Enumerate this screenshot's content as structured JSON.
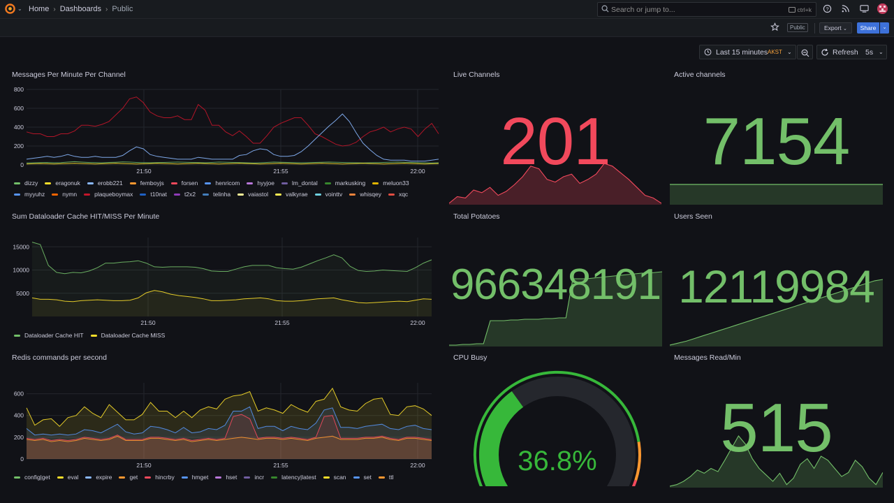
{
  "breadcrumb": {
    "home": "Home",
    "dashboards": "Dashboards",
    "current": "Public"
  },
  "search": {
    "placeholder": "Search or jump to...",
    "shortcut": "ctrl+k"
  },
  "toolbar": {
    "public_tag": "Public",
    "export_label": "Export",
    "share_label": "Share"
  },
  "timepicker": {
    "range": "Last 15 minutes",
    "timezone": "AKST",
    "refresh_label": "Refresh",
    "refresh_interval": "5s"
  },
  "colors": {
    "green": "#73bf69",
    "red": "#f2495c",
    "yellow": "#fade2a",
    "blue": "#8ab8ff",
    "orange": "#ff9830",
    "darkred": "#c4162a"
  },
  "panels": {
    "messages_per_minute": {
      "title": "Messages Per Minute Per Channel",
      "legend": [
        {
          "name": "dizzy",
          "color": "#73bf69"
        },
        {
          "name": "eragonuk",
          "color": "#fade2a"
        },
        {
          "name": "erobb221",
          "color": "#8ab8ff"
        },
        {
          "name": "femboyjs",
          "color": "#ff9830"
        },
        {
          "name": "forsen",
          "color": "#f2495c"
        },
        {
          "name": "henricom",
          "color": "#5794f2"
        },
        {
          "name": "hyyjoe",
          "color": "#b877d9"
        },
        {
          "name": "lm_dontal",
          "color": "#705da0"
        },
        {
          "name": "markusking",
          "color": "#37872d"
        },
        {
          "name": "meluon33",
          "color": "#e0b400"
        },
        {
          "name": "myyuhz",
          "color": "#5794f2"
        },
        {
          "name": "nymn",
          "color": "#fa6400"
        },
        {
          "name": "plaqueboymax",
          "color": "#c4162a"
        },
        {
          "name": "t10nat",
          "color": "#1f60c4"
        },
        {
          "name": "t2x2",
          "color": "#8f3bb8"
        },
        {
          "name": "telinha",
          "color": "#447ebc"
        },
        {
          "name": "vaiastol",
          "color": "#fff899"
        },
        {
          "name": "valkyrae",
          "color": "#ffee52"
        },
        {
          "name": "vointtv",
          "color": "#6ed0e0"
        },
        {
          "name": "whisqey",
          "color": "#ef843c"
        },
        {
          "name": "xqc",
          "color": "#e24d42"
        }
      ]
    },
    "live_channels": {
      "title": "Live Channels",
      "value": "201"
    },
    "active_channels": {
      "title": "Active channels",
      "value": "7154"
    },
    "cache": {
      "title": "Sum Dataloader Cache HIT/MISS Per Minute",
      "legend": [
        {
          "name": "Dataloader Cache HIT",
          "color": "#73bf69"
        },
        {
          "name": "Dataloader Cache MISS",
          "color": "#fade2a"
        }
      ]
    },
    "total_potatoes": {
      "title": "Total Potatoes",
      "value": "966348191"
    },
    "users_seen": {
      "title": "Users Seen",
      "value": "12119984"
    },
    "redis": {
      "title": "Redis commands per second",
      "legend": [
        {
          "name": "config|get",
          "color": "#73bf69"
        },
        {
          "name": "eval",
          "color": "#fade2a"
        },
        {
          "name": "expire",
          "color": "#8ab8ff"
        },
        {
          "name": "get",
          "color": "#ff9830"
        },
        {
          "name": "hincrby",
          "color": "#f2495c"
        },
        {
          "name": "hmget",
          "color": "#5794f2"
        },
        {
          "name": "hset",
          "color": "#b877d9"
        },
        {
          "name": "incr",
          "color": "#705da0"
        },
        {
          "name": "latency|latest",
          "color": "#37872d"
        },
        {
          "name": "scan",
          "color": "#fade2a"
        },
        {
          "name": "set",
          "color": "#5794f2"
        },
        {
          "name": "ttl",
          "color": "#ff9830"
        }
      ]
    },
    "cpu_busy": {
      "title": "CPU Busy",
      "value": "36.8%",
      "percent": 36.8
    },
    "messages_read": {
      "title": "Messages Read/Min",
      "value": "515"
    }
  },
  "chart_data": [
    {
      "type": "line",
      "title": "Messages Per Minute Per Channel",
      "x_ticks": [
        "21:50",
        "21:55",
        "22:00"
      ],
      "y_ticks": [
        0,
        200,
        400,
        600,
        800
      ],
      "ylim": [
        0,
        800
      ],
      "x": [
        0,
        1,
        2,
        3,
        4,
        5,
        6,
        7,
        8,
        9,
        10,
        11,
        12,
        13,
        14,
        15,
        16,
        17,
        18,
        19,
        20,
        21,
        22,
        23,
        24,
        25,
        26,
        27,
        28,
        29,
        30,
        31,
        32,
        33,
        34,
        35,
        36,
        37,
        38,
        39,
        40,
        41,
        42,
        43,
        44,
        45,
        46,
        47,
        48,
        49,
        50,
        51,
        52,
        53,
        54,
        55,
        56,
        57,
        58,
        59,
        60
      ],
      "series": [
        {
          "name": "plaqueboymax",
          "color": "#c4162a",
          "values": [
            350,
            330,
            330,
            300,
            300,
            330,
            330,
            360,
            420,
            420,
            410,
            430,
            460,
            530,
            600,
            700,
            720,
            660,
            560,
            520,
            500,
            500,
            520,
            480,
            480,
            640,
            580,
            420,
            420,
            350,
            310,
            360,
            300,
            230,
            230,
            310,
            400,
            440,
            470,
            500,
            500,
            420,
            330,
            300,
            260,
            220,
            200,
            210,
            240,
            300,
            350,
            370,
            400,
            350,
            380,
            400,
            380,
            300,
            380,
            440,
            330
          ]
        },
        {
          "name": "myyuhz",
          "color": "#8ab8ff",
          "values": [
            60,
            70,
            80,
            90,
            80,
            90,
            110,
            90,
            80,
            80,
            90,
            80,
            80,
            80,
            100,
            150,
            190,
            170,
            110,
            90,
            80,
            70,
            60,
            60,
            60,
            80,
            70,
            60,
            60,
            60,
            60,
            100,
            110,
            150,
            170,
            160,
            110,
            90,
            90,
            100,
            140,
            200,
            270,
            340,
            410,
            470,
            540,
            460,
            340,
            230,
            160,
            100,
            60,
            50,
            50,
            50,
            40,
            40,
            40,
            50,
            60
          ]
        },
        {
          "name": "dizzy",
          "color": "#73bf69",
          "values": [
            20,
            22,
            24,
            26,
            22,
            24,
            30,
            34,
            30,
            26,
            24,
            22,
            26,
            28,
            32,
            30,
            26,
            24,
            22,
            24,
            26,
            28,
            30,
            28,
            26,
            24,
            22,
            26,
            30,
            28,
            26,
            24,
            22,
            20,
            22,
            26,
            30,
            28,
            26,
            24,
            22,
            24,
            26,
            28,
            30,
            28,
            26,
            24,
            22,
            20,
            22,
            24,
            26,
            28,
            30,
            28,
            26,
            24,
            22,
            20,
            22
          ]
        },
        {
          "name": "eragonuk",
          "color": "#fade2a",
          "values": [
            10,
            12,
            14,
            12,
            10,
            12,
            14,
            16,
            14,
            12,
            10,
            12,
            14,
            16,
            14,
            12,
            10,
            12,
            14,
            16,
            14,
            12,
            10,
            12,
            14,
            16,
            14,
            12,
            10,
            12,
            14,
            16,
            14,
            12,
            10,
            12,
            14,
            16,
            14,
            12,
            10,
            12,
            14,
            16,
            14,
            12,
            10,
            12,
            14,
            16,
            14,
            12,
            10,
            12,
            14,
            16,
            14,
            12,
            10,
            12,
            14
          ]
        }
      ]
    },
    {
      "type": "area",
      "title": "Sum Dataloader Cache HIT/MISS Per Minute",
      "x_ticks": [
        "21:50",
        "21:55",
        "22:00"
      ],
      "y_ticks": [
        5000,
        10000,
        15000
      ],
      "ylim": [
        0,
        17000
      ],
      "series": [
        {
          "name": "Dataloader Cache HIT",
          "color": "#73bf69",
          "values": [
            16000,
            15500,
            11000,
            9500,
            9200,
            9500,
            9400,
            9800,
            10500,
            11500,
            11500,
            11700,
            11800,
            12000,
            11500,
            10700,
            10600,
            10700,
            10700,
            10700,
            10600,
            10300,
            9800,
            9700,
            9700,
            10200,
            10700,
            11000,
            11000,
            11000,
            10500,
            10300,
            10200,
            10600,
            11300,
            12000,
            12600,
            13300,
            12600,
            10800,
            9900,
            9700,
            9800,
            10000,
            9900,
            9800,
            9700,
            10500,
            11500,
            12200
          ]
        },
        {
          "name": "Dataloader Cache MISS",
          "color": "#fade2a",
          "values": [
            4000,
            3700,
            3700,
            3600,
            3300,
            3200,
            3400,
            3500,
            3600,
            3500,
            3400,
            3400,
            3500,
            4000,
            5100,
            5600,
            5300,
            4800,
            4500,
            4300,
            4100,
            3800,
            3400,
            3400,
            3500,
            3600,
            3800,
            3900,
            4000,
            3800,
            3400,
            3300,
            3300,
            3400,
            3600,
            3800,
            3900,
            4000,
            3600,
            3300,
            3000,
            2900,
            3000,
            3100,
            3200,
            3300,
            3200,
            3500,
            3800,
            3700
          ]
        }
      ]
    },
    {
      "type": "area",
      "title": "Redis commands per second",
      "x_ticks": [
        "21:50",
        "21:55",
        "22:00"
      ],
      "y_ticks": [
        0,
        200,
        400,
        600
      ],
      "ylim": [
        0,
        700
      ],
      "series": [
        {
          "name": "eval",
          "color": "#fade2a",
          "values": [
            470,
            310,
            360,
            370,
            300,
            380,
            400,
            480,
            420,
            380,
            500,
            430,
            360,
            360,
            410,
            520,
            440,
            440,
            380,
            440,
            380,
            450,
            480,
            460,
            550,
            580,
            590,
            620,
            440,
            470,
            450,
            420,
            500,
            460,
            430,
            530,
            550,
            650,
            480,
            450,
            440,
            510,
            550,
            560,
            410,
            400,
            480,
            490,
            460,
            400
          ]
        },
        {
          "name": "hmget",
          "color": "#5794f2",
          "values": [
            280,
            220,
            230,
            220,
            230,
            220,
            230,
            270,
            260,
            240,
            280,
            320,
            250,
            230,
            240,
            300,
            290,
            270,
            240,
            290,
            240,
            250,
            280,
            270,
            310,
            440,
            440,
            480,
            280,
            300,
            300,
            260,
            300,
            280,
            270,
            330,
            450,
            470,
            290,
            290,
            280,
            300,
            310,
            320,
            280,
            270,
            300,
            310,
            280,
            270
          ]
        },
        {
          "name": "hincrby",
          "color": "#f2495c",
          "values": [
            190,
            180,
            190,
            170,
            180,
            170,
            180,
            200,
            190,
            180,
            190,
            220,
            180,
            180,
            180,
            200,
            200,
            190,
            180,
            190,
            170,
            180,
            190,
            180,
            190,
            390,
            410,
            370,
            190,
            200,
            200,
            190,
            200,
            190,
            180,
            200,
            390,
            400,
            190,
            190,
            190,
            200,
            200,
            210,
            190,
            180,
            200,
            200,
            190,
            180
          ]
        },
        {
          "name": "get",
          "color": "#ff9830",
          "values": [
            180,
            170,
            180,
            160,
            170,
            160,
            170,
            190,
            180,
            170,
            180,
            210,
            170,
            170,
            170,
            190,
            190,
            180,
            170,
            180,
            160,
            170,
            180,
            170,
            180,
            190,
            200,
            190,
            180,
            190,
            190,
            180,
            190,
            180,
            170,
            190,
            200,
            210,
            180,
            180,
            180,
            190,
            190,
            200,
            180,
            170,
            190,
            190,
            180,
            170
          ]
        }
      ]
    },
    {
      "type": "area",
      "title": "Live Channels",
      "values": [
        10,
        15,
        14,
        20,
        18,
        22,
        16,
        19,
        24,
        30,
        38,
        36,
        28,
        26,
        30,
        32,
        25,
        28,
        32,
        40,
        38,
        33,
        28,
        22,
        16,
        14,
        10
      ]
    },
    {
      "type": "area",
      "title": "Total Potatoes",
      "values": [
        5,
        5,
        6,
        6,
        7,
        7,
        40,
        40,
        40,
        41,
        41,
        42,
        42,
        42,
        43,
        43,
        44,
        44,
        100,
        100,
        100,
        101,
        102,
        103,
        104,
        105,
        106,
        107,
        108,
        108,
        109,
        110
      ]
    },
    {
      "type": "area",
      "title": "Users Seen",
      "values": [
        0,
        3,
        6,
        10,
        14,
        18,
        22,
        26,
        30,
        34,
        38,
        42,
        46,
        50,
        54,
        58,
        62,
        66,
        70,
        74,
        78,
        82,
        86,
        90,
        94,
        98,
        100
      ]
    },
    {
      "type": "area",
      "title": "Messages Read/Min",
      "values": [
        8,
        10,
        14,
        20,
        28,
        24,
        30,
        26,
        40,
        55,
        70,
        60,
        42,
        30,
        22,
        14,
        24,
        10,
        18,
        35,
        42,
        30,
        45,
        40,
        30,
        20,
        25,
        40,
        32,
        18,
        10,
        25
      ]
    }
  ]
}
